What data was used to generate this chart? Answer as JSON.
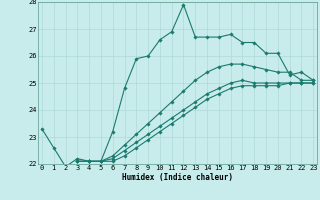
{
  "title": "",
  "xlabel": "Humidex (Indice chaleur)",
  "ylabel": "",
  "bg_color": "#c8ecec",
  "line_color": "#1a7a6e",
  "grid_color": "#b0d8d8",
  "xmin": 0,
  "xmax": 23,
  "ymin": 22,
  "ymax": 28,
  "line1_x": [
    0,
    1,
    2,
    3,
    4,
    5,
    6,
    7,
    8,
    9,
    10,
    11,
    12,
    13,
    14,
    15,
    16,
    17,
    18,
    19,
    20,
    21,
    22,
    23
  ],
  "line1_y": [
    23.3,
    22.6,
    21.9,
    22.2,
    22.1,
    22.1,
    23.2,
    24.8,
    25.9,
    26.0,
    26.6,
    26.9,
    27.9,
    26.7,
    26.7,
    26.7,
    26.8,
    26.5,
    26.5,
    26.1,
    26.1,
    25.3,
    25.4,
    25.1
  ],
  "line2_x": [
    3,
    4,
    5,
    6,
    7,
    8,
    9,
    10,
    11,
    12,
    13,
    14,
    15,
    16,
    17,
    18,
    19,
    20,
    21,
    22,
    23
  ],
  "line2_y": [
    22.1,
    22.1,
    22.1,
    22.3,
    22.7,
    23.1,
    23.5,
    23.9,
    24.3,
    24.7,
    25.1,
    25.4,
    25.6,
    25.7,
    25.7,
    25.6,
    25.5,
    25.4,
    25.4,
    25.1,
    25.1
  ],
  "line3_x": [
    3,
    4,
    5,
    6,
    7,
    8,
    9,
    10,
    11,
    12,
    13,
    14,
    15,
    16,
    17,
    18,
    19,
    20,
    21,
    22,
    23
  ],
  "line3_y": [
    22.1,
    22.1,
    22.1,
    22.2,
    22.5,
    22.8,
    23.1,
    23.4,
    23.7,
    24.0,
    24.3,
    24.6,
    24.8,
    25.0,
    25.1,
    25.0,
    25.0,
    25.0,
    25.0,
    25.0,
    25.0
  ],
  "line4_x": [
    3,
    4,
    5,
    6,
    7,
    8,
    9,
    10,
    11,
    12,
    13,
    14,
    15,
    16,
    17,
    18,
    19,
    20,
    21,
    22,
    23
  ],
  "line4_y": [
    22.1,
    22.1,
    22.1,
    22.1,
    22.3,
    22.6,
    22.9,
    23.2,
    23.5,
    23.8,
    24.1,
    24.4,
    24.6,
    24.8,
    24.9,
    24.9,
    24.9,
    24.9,
    25.0,
    25.0,
    25.0
  ],
  "font_size_tick": 5,
  "font_size_label": 5.5,
  "marker_size": 1.8,
  "line_width": 0.8
}
